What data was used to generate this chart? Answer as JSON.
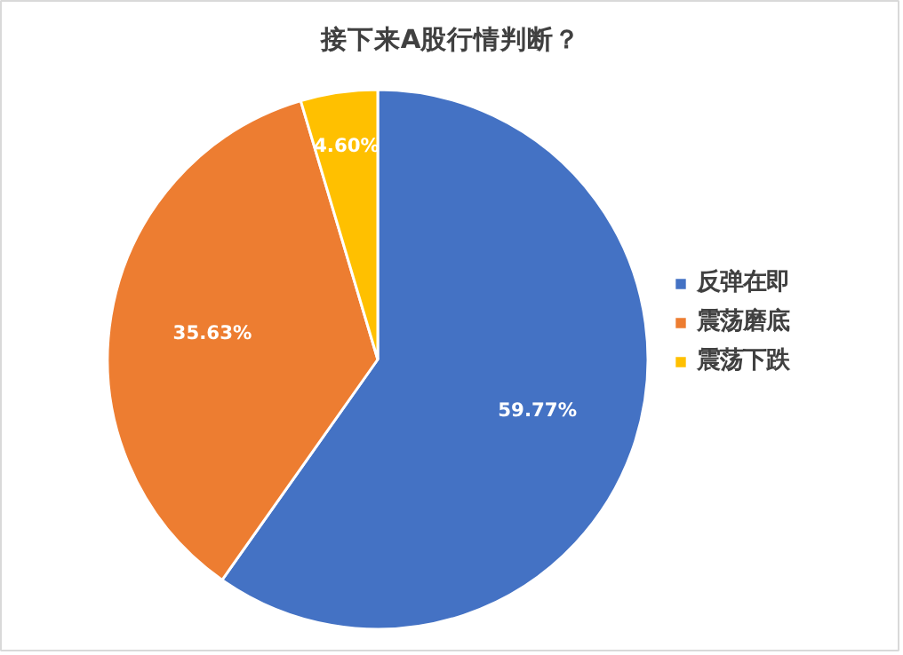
{
  "chart_data": {
    "type": "pie",
    "title": "接下来A股行情判断？",
    "categories": [
      "反弹在即",
      "震荡磨底",
      "震荡下跌"
    ],
    "values": [
      59.77,
      35.63,
      4.6
    ],
    "colors": [
      "#4472c4",
      "#ed7d31",
      "#ffc000"
    ],
    "value_labels": [
      "59.77%",
      "35.63%",
      "4.60%"
    ],
    "legend": "right"
  }
}
